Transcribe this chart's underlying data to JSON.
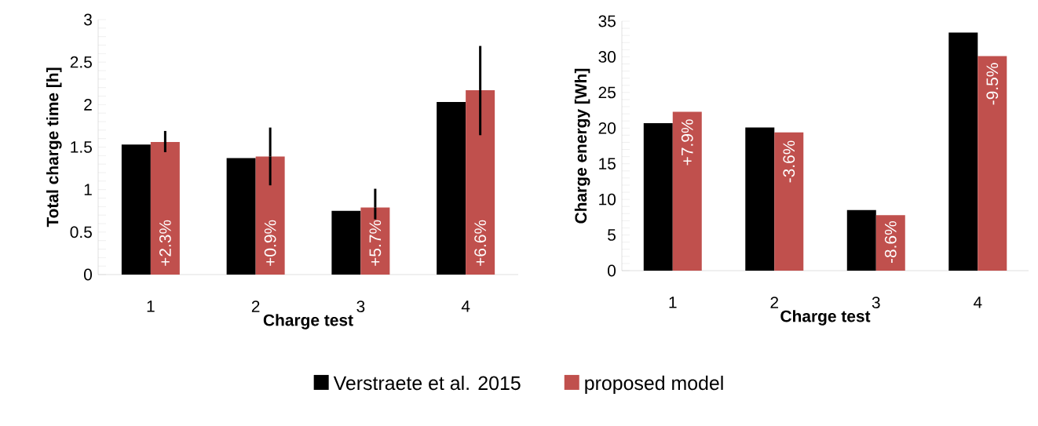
{
  "chart_data": [
    {
      "type": "bar",
      "categories": [
        "1",
        "2",
        "3",
        "4"
      ],
      "xlabel": "Charge test",
      "ylabel": "Total charge time [h]",
      "ylim": [
        0,
        3
      ],
      "yticks": [
        0,
        0.5,
        1,
        1.5,
        2,
        2.5,
        3
      ],
      "legend": "bottom",
      "series": [
        {
          "name": "Verstraete et al. 2015",
          "color": "#000000",
          "values": [
            1.53,
            1.37,
            0.75,
            2.03
          ]
        },
        {
          "name": "proposed model",
          "color": "#c0504d",
          "values": [
            1.56,
            1.39,
            0.79,
            2.17
          ],
          "errors": [
            [
              1.44,
              1.69
            ],
            [
              1.05,
              1.73
            ],
            [
              0.65,
              1.01
            ],
            [
              1.64,
              2.69
            ]
          ]
        }
      ],
      "annotations": [
        {
          "text": "+2.3%",
          "x": "1",
          "y": 0.37
        },
        {
          "text": "+0.9%",
          "x": "2",
          "y": 0.37
        },
        {
          "text": "+5.7%",
          "x": "3",
          "y": 0.37
        },
        {
          "text": "+6.6%",
          "x": "4",
          "y": 0.37
        }
      ]
    },
    {
      "type": "bar",
      "categories": [
        "1",
        "2",
        "3",
        "4"
      ],
      "xlabel": "Charge test",
      "ylabel": "Charge energy [Wh]",
      "ylim": [
        0,
        35
      ],
      "yticks": [
        0,
        5,
        10,
        15,
        20,
        25,
        30,
        35
      ],
      "series": [
        {
          "color": "#000000",
          "values": [
            20.7,
            20.1,
            8.5,
            33.4
          ]
        },
        {
          "color": "#c0504d",
          "values": [
            22.3,
            19.4,
            7.8,
            30.1
          ]
        }
      ],
      "annotations": [
        {
          "text": "+7.9%",
          "x": "1",
          "y": 18
        },
        {
          "text": "-3.6%",
          "x": "2",
          "y": 15.3
        },
        {
          "text": "-8.6%",
          "x": "3",
          "y": 4
        },
        {
          "text": "-9.5%",
          "x": "4",
          "y": 26.2
        }
      ]
    }
  ]
}
